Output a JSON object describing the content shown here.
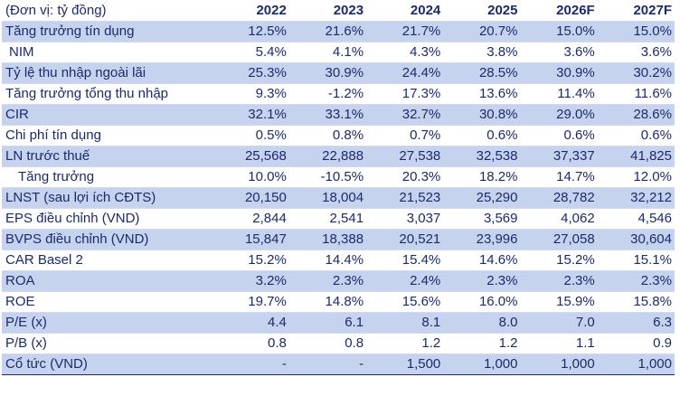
{
  "table": {
    "unit_label": "(Đơn vị: tỷ đồng)",
    "years": [
      "2022",
      "2023",
      "2024",
      "2025",
      "2026F",
      "2027F"
    ],
    "rows": [
      {
        "label": "Tăng trưởng tín dụng",
        "values": [
          "12.5%",
          "21.6%",
          "21.7%",
          "20.7%",
          "15.0%",
          "15.0%"
        ]
      },
      {
        "label": "NIM",
        "values": [
          "5.4%",
          "4.1%",
          "4.3%",
          "3.8%",
          "3.6%",
          "3.6%"
        ]
      },
      {
        "label": "Tỷ lệ thu nhập ngoài lãi",
        "values": [
          "25.3%",
          "30.9%",
          "24.4%",
          "28.5%",
          "30.9%",
          "30.2%"
        ]
      },
      {
        "label": "Tăng trưởng tổng thu nhập",
        "values": [
          "9.3%",
          "-1.2%",
          "17.3%",
          "13.6%",
          "11.4%",
          "11.6%"
        ]
      },
      {
        "label": "CIR",
        "values": [
          "32.1%",
          "33.1%",
          "32.7%",
          "30.8%",
          "29.0%",
          "28.6%"
        ]
      },
      {
        "label": "Chi phí tín dụng",
        "values": [
          "0.5%",
          "0.8%",
          "0.7%",
          "0.6%",
          "0.6%",
          "0.6%"
        ]
      },
      {
        "label": "LN trước thuế",
        "values": [
          "25,568",
          "22,888",
          "27,538",
          "32,538",
          "37,337",
          "41,825"
        ]
      },
      {
        "label": "Tăng trưởng",
        "values": [
          "10.0%",
          "-10.5%",
          "20.3%",
          "18.2%",
          "14.7%",
          "12.0%"
        ]
      },
      {
        "label": "LNST (sau lợi ích CĐTS)",
        "values": [
          "20,150",
          "18,004",
          "21,523",
          "25,290",
          "28,782",
          "32,212"
        ]
      },
      {
        "label": "EPS điều chỉnh (VND)",
        "values": [
          "2,844",
          "2,541",
          "3,037",
          "3,569",
          "4,062",
          "4,546"
        ]
      },
      {
        "label": "BVPS điều chỉnh (VND)",
        "values": [
          "15,847",
          "18,388",
          "20,521",
          "23,996",
          "27,058",
          "30,604"
        ]
      },
      {
        "label": "CAR Basel 2",
        "values": [
          "15.2%",
          "14.4%",
          "15.4%",
          "14.6%",
          "15.2%",
          "15.1%"
        ]
      },
      {
        "label": "ROA",
        "values": [
          "3.2%",
          "2.3%",
          "2.4%",
          "2.3%",
          "2.3%",
          "2.3%"
        ]
      },
      {
        "label": "ROE",
        "values": [
          "19.7%",
          "14.8%",
          "15.6%",
          "16.0%",
          "15.9%",
          "15.8%"
        ]
      },
      {
        "label": "P/E (x)",
        "values": [
          "4.4",
          "6.1",
          "8.1",
          "8.0",
          "7.0",
          "6.3"
        ]
      },
      {
        "label": "P/B (x)",
        "values": [
          "0.8",
          "0.8",
          "1.2",
          "1.2",
          "1.1",
          "0.9"
        ]
      },
      {
        "label": "Cổ tức (VND)",
        "values": [
          "-",
          "-",
          "1,500",
          "1,000",
          "1,000",
          "1,000"
        ]
      }
    ]
  },
  "colors": {
    "text": "#1c2a6b",
    "row_shade": "#c6d3ef",
    "row_rule": "#d3d9ee"
  }
}
